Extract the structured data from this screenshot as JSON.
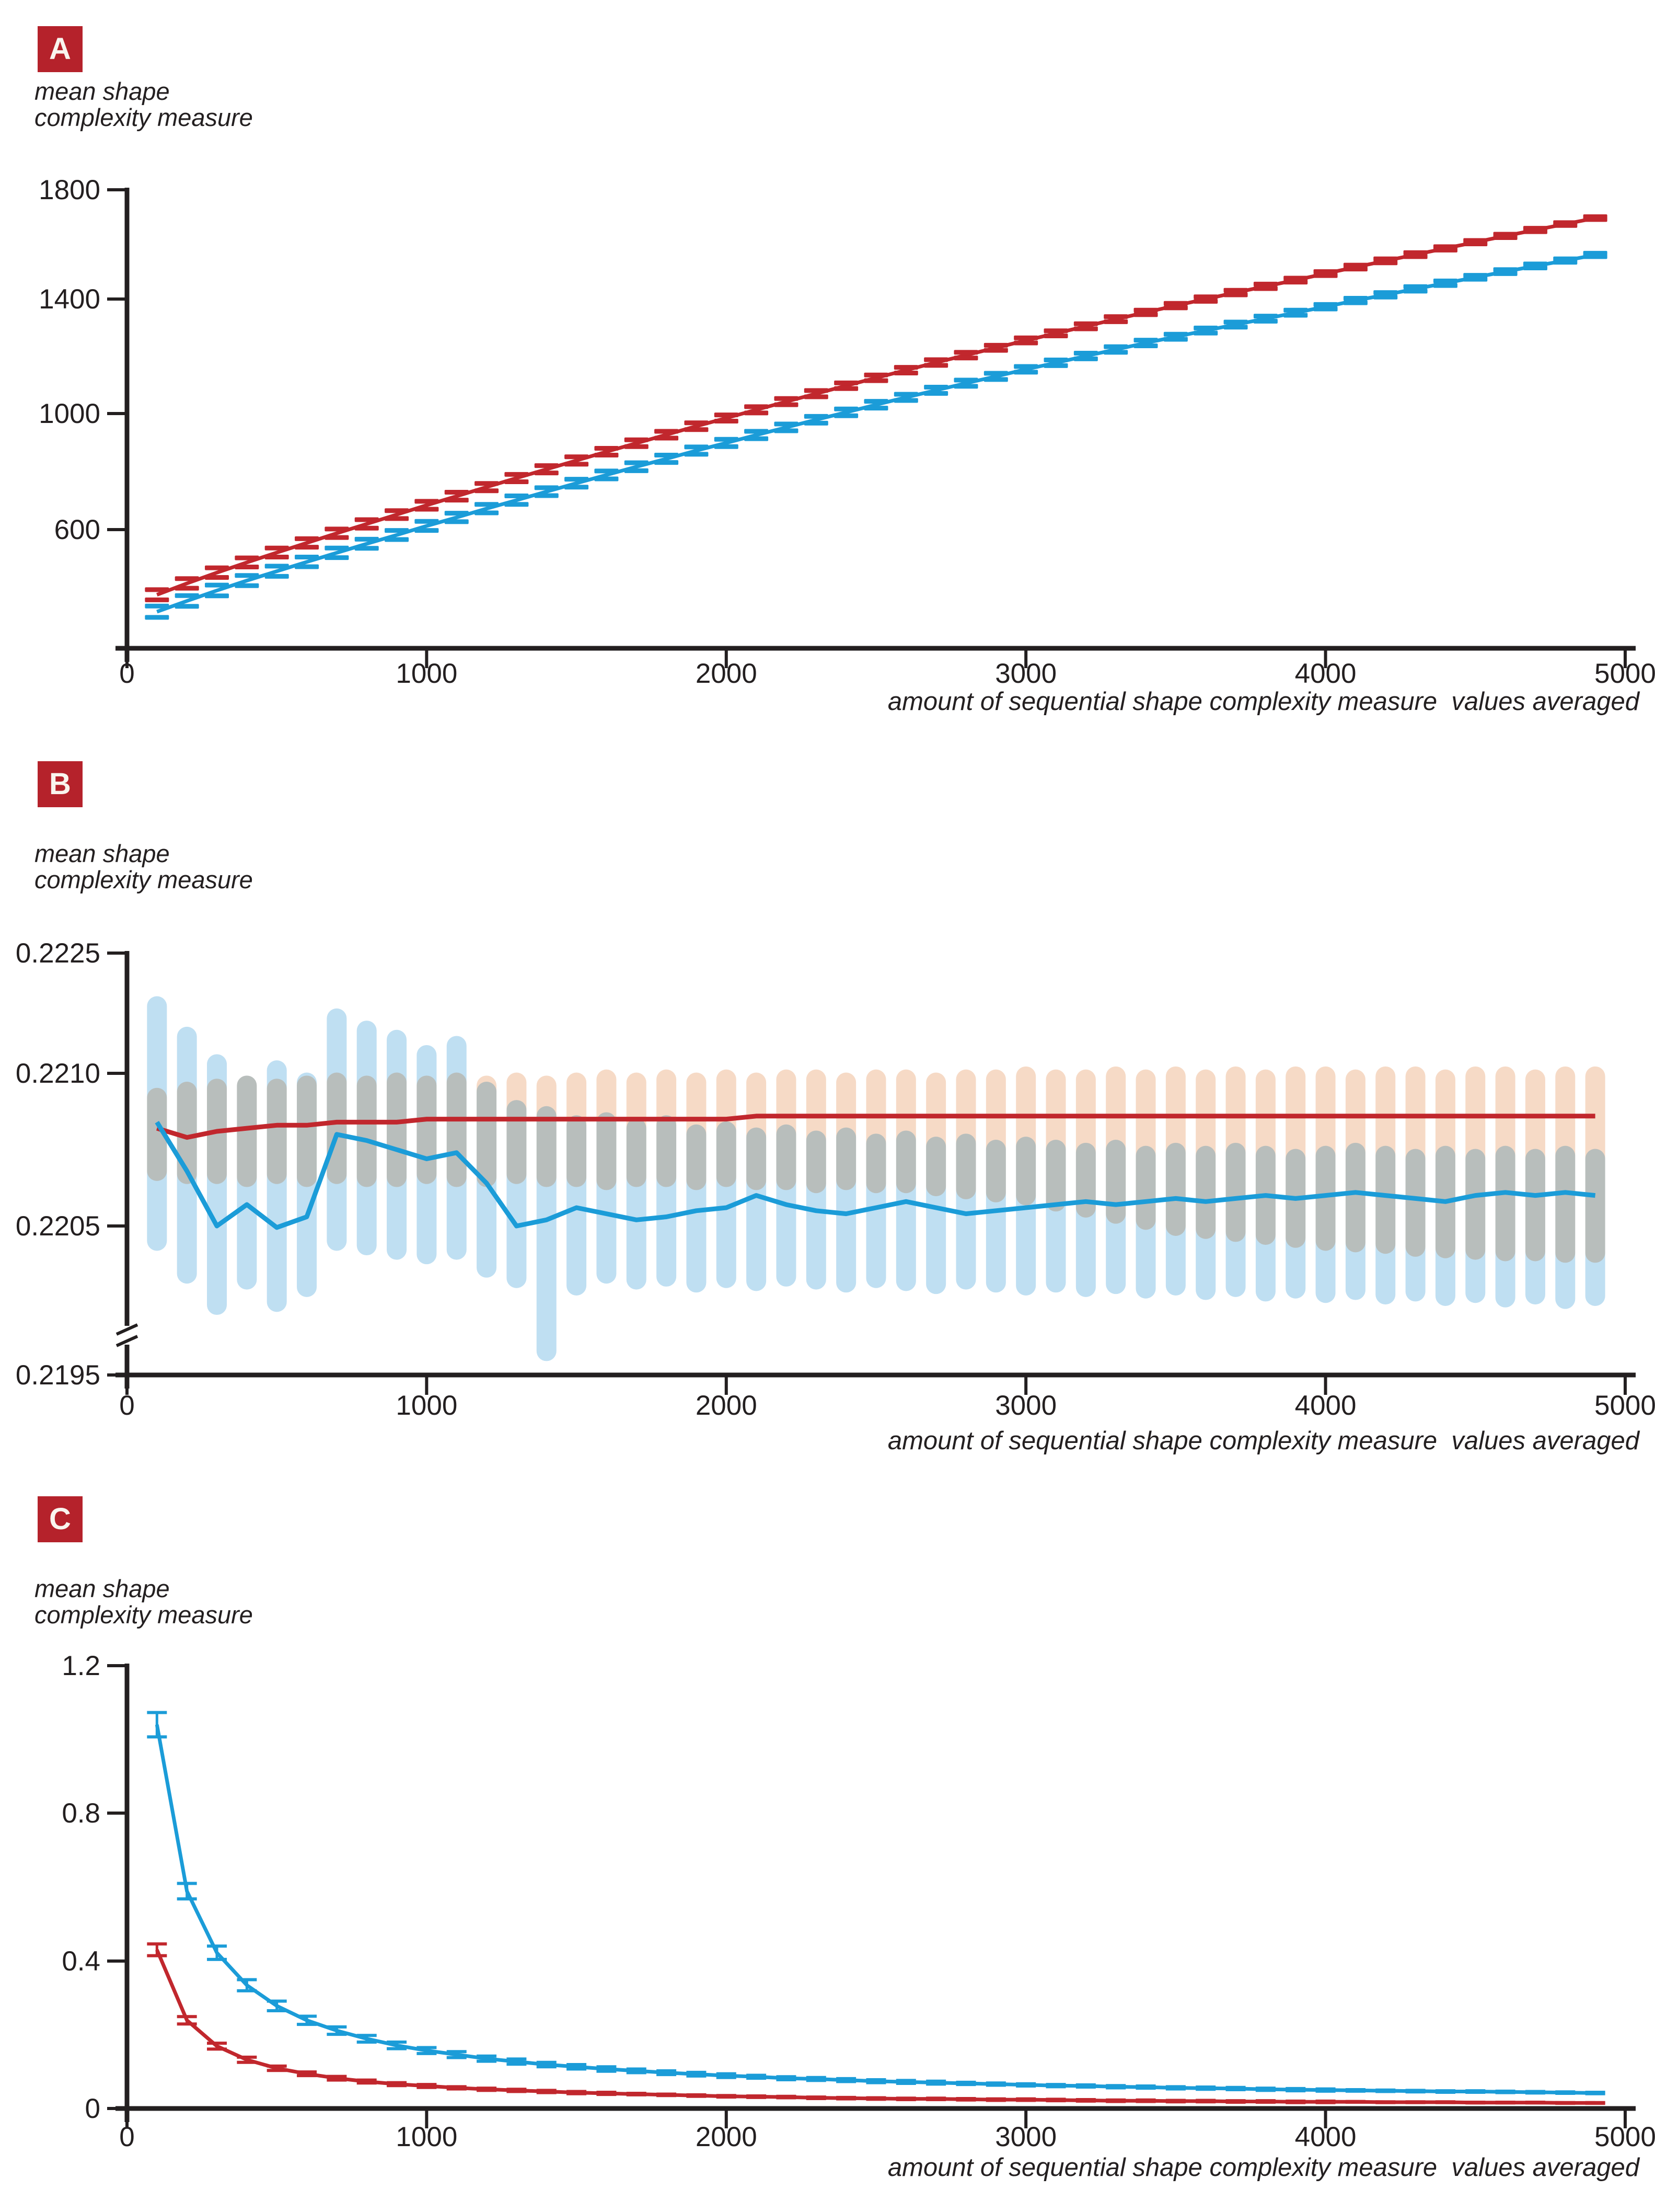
{
  "colors": {
    "red": "#c1272d",
    "blue": "#1b9cd8",
    "light_blue_band": "#bfdff2",
    "light_pink_band": "#f6dac6",
    "axis": "#231f20",
    "text": "#231f20",
    "badge_bg": "#b5222b",
    "badge_text": "#f9f4ee"
  },
  "x_axis": {
    "label": "amount of sequential shape complexity measure  values averaged",
    "ticks": [
      0,
      1000,
      2000,
      3000,
      4000,
      5000
    ],
    "max": 5000
  },
  "panels": [
    {
      "badge": "A",
      "ylabel_line1": "mean shape",
      "ylabel_line2": "complexity measure",
      "y_ticks": [
        "1800",
        "1400",
        "1000",
        "600"
      ]
    },
    {
      "badge": "B",
      "ylabel_line1": "mean shape",
      "ylabel_line2": "complexity measure",
      "y_ticks": [
        "0.2225",
        "0.2210",
        "0.2205",
        "0.2195"
      ]
    },
    {
      "badge": "C",
      "ylabel_line1": "mean shape",
      "ylabel_line2": "complexity measure",
      "y_ticks": [
        "1.2",
        "0.8",
        "0.4",
        "0"
      ]
    }
  ],
  "chart_data": [
    {
      "type": "line",
      "panel": "A",
      "title": "mean shape complexity measure vs amount averaged (increasing curves)",
      "xlabel": "amount of sequential shape complexity measure  values averaged",
      "ylabel": "mean shape complexity measure",
      "x_start": 100,
      "x_step": 100,
      "xlim": [
        0,
        5000
      ],
      "ylim": [
        180,
        1800
      ],
      "yticks": [
        600,
        1000,
        1400,
        1800
      ],
      "legend": "none",
      "marker": "horizontal error-bar caps",
      "series": [
        {
          "name": "red_series",
          "color": "red",
          "values": [
            370,
            410,
            448,
            484,
            519,
            553,
            587,
            620,
            653,
            686,
            718,
            750,
            782,
            813,
            844,
            875,
            905,
            935,
            965,
            994,
            1023,
            1052,
            1080,
            1108,
            1136,
            1163,
            1190,
            1216,
            1242,
            1268,
            1293,
            1318,
            1343,
            1367,
            1391,
            1414,
            1437,
            1459,
            1481,
            1504,
            1527,
            1549,
            1571,
            1593,
            1615,
            1637,
            1658,
            1679,
            1700
          ],
          "err": [
            18,
            17,
            17,
            16,
            16,
            15,
            15,
            15,
            14,
            14,
            14,
            13,
            13,
            13,
            13,
            12,
            12,
            12,
            12,
            11,
            11,
            11,
            11,
            10,
            10,
            10,
            10,
            10,
            9,
            9,
            9,
            9,
            9,
            8,
            8,
            8,
            8,
            8,
            7,
            7,
            7,
            7,
            7,
            6,
            6,
            6,
            6,
            5,
            5
          ]
        },
        {
          "name": "blue_series",
          "color": "blue",
          "values": [
            310,
            348,
            385,
            420,
            453,
            486,
            518,
            550,
            581,
            613,
            643,
            674,
            704,
            734,
            764,
            793,
            822,
            850,
            879,
            906,
            934,
            961,
            988,
            1014,
            1041,
            1067,
            1092,
            1117,
            1141,
            1166,
            1189,
            1213,
            1236,
            1259,
            1281,
            1303,
            1324,
            1345,
            1366,
            1387,
            1409,
            1429,
            1450,
            1470,
            1491,
            1511,
            1531,
            1550,
            1570
          ],
          "err": [
            20,
            19,
            19,
            18,
            18,
            17,
            17,
            16,
            16,
            16,
            15,
            15,
            15,
            14,
            14,
            14,
            14,
            13,
            13,
            13,
            13,
            12,
            12,
            12,
            12,
            11,
            11,
            11,
            11,
            10,
            10,
            10,
            10,
            10,
            9,
            9,
            9,
            9,
            9,
            8,
            8,
            8,
            8,
            8,
            7,
            7,
            7,
            6,
            6
          ]
        }
      ]
    },
    {
      "type": "line+bands",
      "panel": "B",
      "title": "mean shape complexity measure vs amount averaged (converging means with spread bands)",
      "xlabel": "amount of sequential shape complexity measure  values averaged",
      "ylabel": "mean shape complexity measure",
      "x_start": 100,
      "x_step": 100,
      "xlim": [
        0,
        5000
      ],
      "yticks": [
        0.2195,
        0.2205,
        0.221,
        0.2225
      ],
      "axis_break": true,
      "legend": "none",
      "series": [
        {
          "name": "red_mean",
          "color": "red",
          "values": [
            0.22082,
            0.22079,
            0.22081,
            0.22082,
            0.22083,
            0.22083,
            0.22084,
            0.22084,
            0.22084,
            0.22085,
            0.22085,
            0.22085,
            0.22085,
            0.22085,
            0.22085,
            0.22085,
            0.22085,
            0.22085,
            0.22085,
            0.22085,
            0.22086,
            0.22086,
            0.22086,
            0.22086,
            0.22086,
            0.22086,
            0.22086,
            0.22086,
            0.22086,
            0.22086,
            0.22086,
            0.22086,
            0.22086,
            0.22086,
            0.22086,
            0.22086,
            0.22086,
            0.22086,
            0.22086,
            0.22086,
            0.22086,
            0.22086,
            0.22086,
            0.22086,
            0.22086,
            0.22086,
            0.22086,
            0.22086,
            0.22086
          ]
        },
        {
          "name": "blue_mean",
          "color": "blue",
          "values": [
            0.22084,
            0.22068,
            0.2205,
            0.22057,
            0.22049,
            0.22053,
            0.2208,
            0.22078,
            0.22075,
            0.22072,
            0.22074,
            0.22064,
            0.2205,
            0.22052,
            0.22056,
            0.22054,
            0.22052,
            0.22053,
            0.22055,
            0.22056,
            0.2206,
            0.22057,
            0.22055,
            0.22054,
            0.22056,
            0.22058,
            0.22056,
            0.22054,
            0.22055,
            0.22056,
            0.22057,
            0.22058,
            0.22057,
            0.22058,
            0.22059,
            0.22058,
            0.22059,
            0.2206,
            0.22059,
            0.2206,
            0.22061,
            0.2206,
            0.22059,
            0.22058,
            0.2206,
            0.22061,
            0.2206,
            0.22061,
            0.2206
          ]
        }
      ],
      "bands": [
        {
          "name": "blue_spread",
          "color": "light_blue_band",
          "hi": [
            0.22122,
            0.22112,
            0.22103,
            0.22096,
            0.22101,
            0.22097,
            0.22118,
            0.22114,
            0.22111,
            0.22106,
            0.22109,
            0.22094,
            0.22088,
            0.22086,
            0.22083,
            0.22084,
            0.22082,
            0.22083,
            0.2208,
            0.22081,
            0.22079,
            0.2208,
            0.22078,
            0.22079,
            0.22077,
            0.22078,
            0.22076,
            0.22077,
            0.22075,
            0.22076,
            0.22075,
            0.22074,
            0.22075,
            0.22073,
            0.22074,
            0.22073,
            0.22074,
            0.22073,
            0.22072,
            0.22073,
            0.22074,
            0.22073,
            0.22072,
            0.22073,
            0.22072,
            0.22073,
            0.22072,
            0.22073,
            0.22072
          ],
          "lo": [
            0.2204,
            0.22018,
            0.21997,
            0.22014,
            0.21999,
            0.22009,
            0.2204,
            0.22037,
            0.22034,
            0.22031,
            0.22034,
            0.22022,
            0.22015,
            0.21966,
            0.2201,
            0.22018,
            0.22014,
            0.22016,
            0.22012,
            0.22015,
            0.22013,
            0.22016,
            0.22014,
            0.22012,
            0.22015,
            0.22013,
            0.22011,
            0.22014,
            0.22012,
            0.2201,
            0.22012,
            0.22009,
            0.22011,
            0.22008,
            0.2201,
            0.22007,
            0.22009,
            0.22006,
            0.22008,
            0.22005,
            0.22007,
            0.22004,
            0.22006,
            0.22003,
            0.22005,
            0.22002,
            0.22004,
            0.22001,
            0.22003
          ]
        },
        {
          "name": "pink_spread",
          "color": "light_pink_band",
          "hi": [
            0.22092,
            0.22094,
            0.22095,
            0.22096,
            0.22095,
            0.22096,
            0.22097,
            0.22096,
            0.22097,
            0.22096,
            0.22097,
            0.22096,
            0.22097,
            0.22096,
            0.22097,
            0.22098,
            0.22097,
            0.22098,
            0.22097,
            0.22098,
            0.22097,
            0.22098,
            0.22098,
            0.22097,
            0.22098,
            0.22098,
            0.22097,
            0.22098,
            0.22098,
            0.22099,
            0.22098,
            0.22098,
            0.22099,
            0.22098,
            0.22099,
            0.22098,
            0.22099,
            0.22098,
            0.22099,
            0.22099,
            0.22098,
            0.22099,
            0.22099,
            0.22098,
            0.22099,
            0.22099,
            0.22098,
            0.22099,
            0.22099
          ],
          "lo": [
            0.22068,
            0.22067,
            0.22067,
            0.22066,
            0.22067,
            0.22066,
            0.22067,
            0.22066,
            0.22066,
            0.22067,
            0.22066,
            0.22066,
            0.22067,
            0.22066,
            0.22066,
            0.22065,
            0.22066,
            0.22066,
            0.22065,
            0.22066,
            0.22065,
            0.22065,
            0.22064,
            0.22065,
            0.22064,
            0.22064,
            0.22063,
            0.22062,
            0.22061,
            0.2206,
            0.22058,
            0.22056,
            0.22054,
            0.22052,
            0.2205,
            0.22048,
            0.22046,
            0.22044,
            0.22042,
            0.2204,
            0.22039,
            0.22038,
            0.22036,
            0.22035,
            0.22034,
            0.22033,
            0.22033,
            0.22032,
            0.22032
          ]
        }
      ]
    },
    {
      "type": "line+errorbars",
      "panel": "C",
      "title": "mean shape complexity measure vs amount averaged (decaying curves)",
      "xlabel": "amount of sequential shape complexity measure  values averaged",
      "ylabel": "mean shape complexity measure",
      "x_start": 100,
      "x_step": 100,
      "xlim": [
        0,
        5000
      ],
      "ylim": [
        0,
        1.2
      ],
      "yticks": [
        0,
        0.4,
        0.8,
        1.2
      ],
      "legend": "none",
      "series": [
        {
          "name": "blue_series",
          "color": "blue",
          "values": [
            1.04,
            0.589,
            0.422,
            0.334,
            0.278,
            0.239,
            0.211,
            0.189,
            0.171,
            0.157,
            0.146,
            0.135,
            0.127,
            0.119,
            0.113,
            0.107,
            0.102,
            0.097,
            0.093,
            0.089,
            0.086,
            0.082,
            0.08,
            0.077,
            0.074,
            0.072,
            0.07,
            0.068,
            0.066,
            0.064,
            0.062,
            0.061,
            0.059,
            0.058,
            0.056,
            0.055,
            0.054,
            0.052,
            0.051,
            0.05,
            0.049,
            0.048,
            0.047,
            0.046,
            0.046,
            0.045,
            0.044,
            0.043,
            0.042
          ],
          "err": [
            0.033,
            0.021,
            0.018,
            0.015,
            0.013,
            0.011,
            0.01,
            0.009,
            0.009,
            0.008,
            0.008,
            0.007,
            0.007,
            0.006,
            0.006,
            0.006,
            0.005,
            0.005,
            0.005,
            0.005,
            0.004,
            0.004,
            0.004,
            0.004,
            0.004,
            0.004,
            0.004,
            0.003,
            0.003,
            0.003,
            0.003,
            0.003,
            0.003,
            0.003,
            0.003,
            0.003,
            0.003,
            0.003,
            0.003,
            0.003,
            0.002,
            0.002,
            0.002,
            0.002,
            0.002,
            0.002,
            0.002,
            0.002,
            0.002
          ]
        },
        {
          "name": "red_series",
          "color": "red",
          "values": [
            0.43,
            0.239,
            0.169,
            0.132,
            0.109,
            0.094,
            0.082,
            0.073,
            0.066,
            0.061,
            0.056,
            0.052,
            0.049,
            0.046,
            0.043,
            0.041,
            0.039,
            0.037,
            0.035,
            0.033,
            0.032,
            0.031,
            0.029,
            0.028,
            0.027,
            0.026,
            0.026,
            0.025,
            0.024,
            0.024,
            0.023,
            0.022,
            0.021,
            0.021,
            0.02,
            0.02,
            0.019,
            0.019,
            0.018,
            0.018,
            0.018,
            0.017,
            0.017,
            0.017,
            0.016,
            0.016,
            0.016,
            0.015,
            0.015
          ],
          "err": [
            0.016,
            0.01,
            0.008,
            0.007,
            0.006,
            0.005,
            0.005,
            0.004,
            0.004,
            0.004,
            0.003,
            0.003,
            0.003,
            0.003,
            0.003,
            0.003,
            0.002,
            0.002,
            0.002,
            0.002,
            0.002,
            0.002,
            0.002,
            0.002,
            0.002,
            0.002,
            0.002,
            0.002,
            0.002,
            0.002,
            0.002,
            0.002,
            0.002,
            0.002,
            0.002,
            0.002,
            0.002,
            0.002,
            0.002,
            0.002,
            0.001,
            0.001,
            0.001,
            0.001,
            0.001,
            0.001,
            0.001,
            0.001,
            0.001
          ]
        }
      ]
    }
  ]
}
